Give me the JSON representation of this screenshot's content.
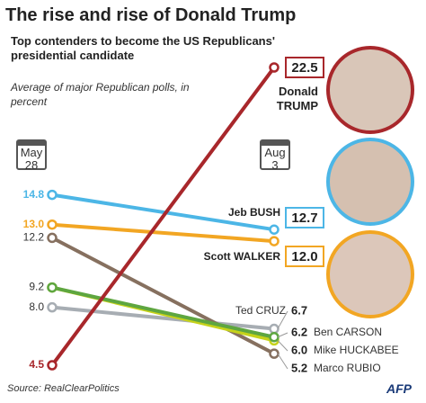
{
  "title": "The rise and rise of Donald Trump",
  "subtitle": "Top contenders to become the US Republicans' presidential candidate",
  "source": "Source: RealClearPolitics",
  "logo": "AFP",
  "chart_data": {
    "type": "slope",
    "note": "Average of major Republican polls, in percent",
    "x": [
      "May 28",
      "Aug 3"
    ],
    "ylim": [
      4.5,
      22.5
    ],
    "series": [
      {
        "name": "Ted CRUZ",
        "color": "#a7adb3",
        "values": [
          8.0,
          6.7
        ],
        "value_labels": [
          "8.0",
          "6.7"
        ]
      },
      {
        "name": "Marco RUBIO",
        "color": "#86705f",
        "values": [
          12.2,
          5.2
        ],
        "value_labels": [
          "12.2",
          "5.2"
        ]
      },
      {
        "name": "Mike HUCKABEE",
        "color": "#c6d21a",
        "values": [
          9.2,
          6.0
        ],
        "value_labels": [
          "9.2",
          "6.0"
        ]
      },
      {
        "name": "Ben CARSON",
        "color": "#5ea640",
        "values": [
          9.2,
          6.2
        ],
        "value_labels": [
          "9.2",
          "6.2"
        ]
      },
      {
        "name": "Scott WALKER",
        "color": "#f2a623",
        "values": [
          13.0,
          12.0
        ],
        "value_labels": [
          "13.0",
          "12.0"
        ]
      },
      {
        "name": "Jeb BUSH",
        "color": "#4cb6e6",
        "values": [
          14.8,
          12.7
        ],
        "value_labels": [
          "14.8",
          "12.7"
        ]
      },
      {
        "name": "Donald TRUMP",
        "color": "#a8272b",
        "values": [
          4.5,
          22.5
        ],
        "value_labels": [
          "4.5",
          "22.5"
        ]
      }
    ]
  }
}
